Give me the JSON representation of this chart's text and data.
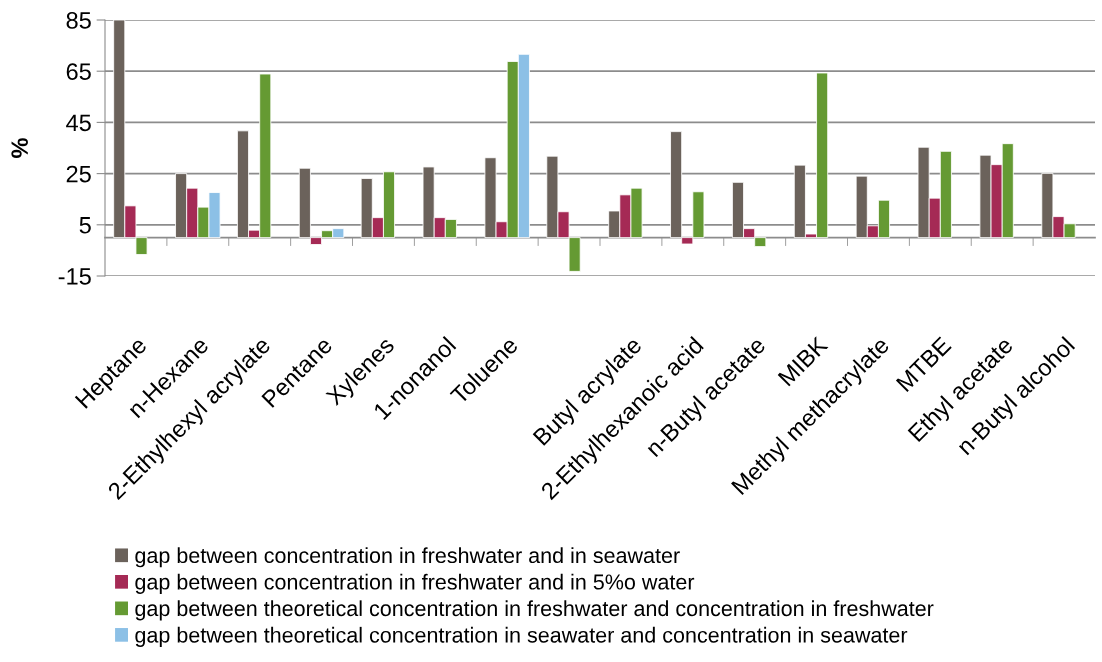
{
  "chart_data": {
    "type": "bar",
    "ylabel": "%",
    "categories": [
      "Heptane",
      "n-Hexane",
      "2-Ethylhexyl acrylate",
      "Pentane",
      "Xylenes",
      "1-nonanol",
      "Toluene",
      null,
      "Butyl acrylate",
      "2-Ethylhexanoic acid",
      "n-Butyl acetate",
      "MIBK",
      "Methyl methacrylate",
      "MTBE",
      "Ethyl acetate",
      "n-Butyl alcohol"
    ],
    "series": [
      {
        "name": "gap between concentration in freshwater and in seawater",
        "color": "#6b625b",
        "values": [
          85,
          25,
          41.7,
          27.1,
          23.1,
          27.6,
          31.2,
          31.8,
          10.4,
          41.4,
          21.6,
          28.3,
          24,
          35.3,
          32.2,
          25.1
        ]
      },
      {
        "name": "gap between concentration in freshwater and in 5%o water",
        "color": "#a52a55",
        "values": [
          12.4,
          19.3,
          2.9,
          -2.7,
          7.8,
          7.8,
          6.2,
          10.1,
          16.7,
          -2.5,
          3.5,
          1.4,
          4.6,
          15.4,
          28.5,
          8.2
        ]
      },
      {
        "name": "gap between theoretical concentration in freshwater and concentration in freshwater",
        "color": "#659a33",
        "values": [
          -6.6,
          11.9,
          63.9,
          2.7,
          25.7,
          7.1,
          68.8,
          -13.2,
          19.3,
          17.9,
          -3.5,
          64.3,
          14.6,
          33.7,
          36.7,
          5.4
        ]
      },
      {
        "name": "gap between theoretical concentration in seawater and concentration in seawater",
        "color": "#8cc0e6",
        "values": [
          null,
          17.6,
          null,
          3.5,
          null,
          null,
          71.6,
          null,
          null,
          null,
          null,
          null,
          null,
          null,
          null,
          null
        ]
      }
    ],
    "ylim": [
      -15,
      85
    ],
    "yticks": [
      -15,
      5,
      25,
      45,
      65,
      85
    ],
    "grid": "y",
    "legend": "bottom"
  }
}
